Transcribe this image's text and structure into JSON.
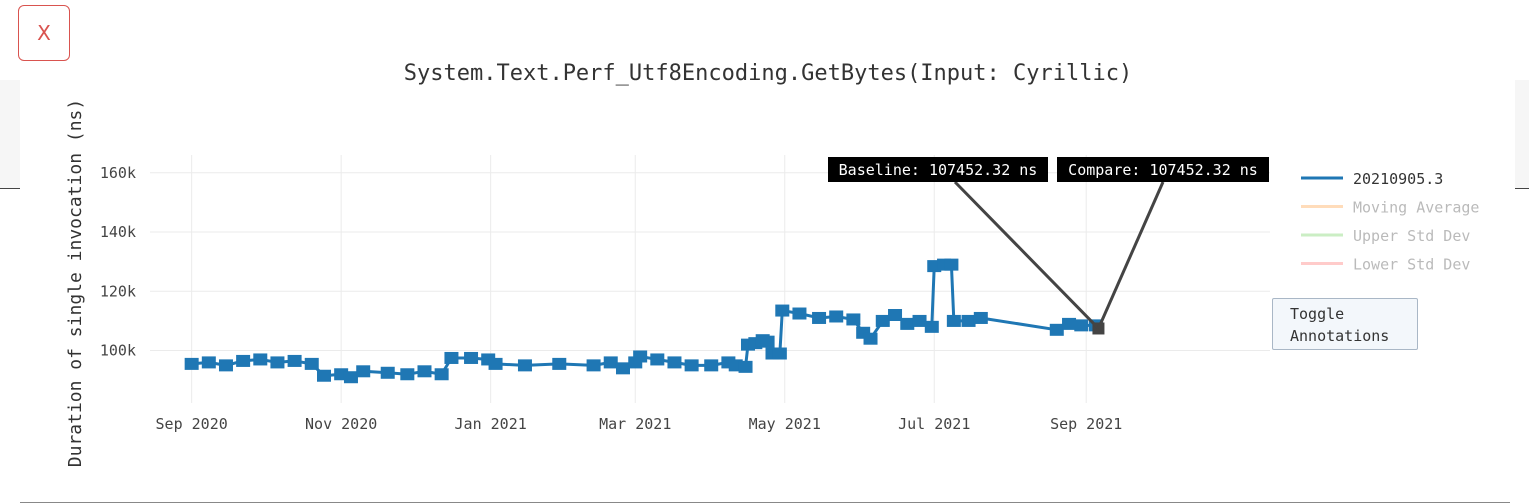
{
  "close_button": {
    "label": "X"
  },
  "toggle_button": {
    "label": "Toggle\nAnnotations"
  },
  "chart_data": {
    "type": "line",
    "title": "System.Text.Perf_Utf8Encoding.GetBytes(Input: Cyrillic)",
    "xlabel": "",
    "ylabel": "Duration of single invocation (ns)",
    "x_range": [
      "2020-08-15",
      "2021-11-15"
    ],
    "ylim": [
      85000,
      166000
    ],
    "x_ticks": [
      {
        "date": "2020-09-01",
        "label": "Sep 2020"
      },
      {
        "date": "2020-11-01",
        "label": "Nov 2020"
      },
      {
        "date": "2021-01-01",
        "label": "Jan 2021"
      },
      {
        "date": "2021-03-01",
        "label": "Mar 2021"
      },
      {
        "date": "2021-05-01",
        "label": "May 2021"
      },
      {
        "date": "2021-07-01",
        "label": "Jul 2021"
      },
      {
        "date": "2021-09-01",
        "label": "Sep 2021"
      }
    ],
    "y_ticks": [
      {
        "value": 100000,
        "label": "100k"
      },
      {
        "value": 120000,
        "label": "120k"
      },
      {
        "value": 140000,
        "label": "140k"
      },
      {
        "value": 160000,
        "label": "160k"
      }
    ],
    "grid": true,
    "legend_position": "right",
    "series": [
      {
        "name": "20210905.3",
        "color": "#1f77b4",
        "active": true,
        "points": [
          [
            "2020-09-01",
            95500
          ],
          [
            "2020-09-08",
            96000
          ],
          [
            "2020-09-15",
            95000
          ],
          [
            "2020-09-22",
            96500
          ],
          [
            "2020-09-29",
            97000
          ],
          [
            "2020-10-06",
            96000
          ],
          [
            "2020-10-13",
            96500
          ],
          [
            "2020-10-20",
            95500
          ],
          [
            "2020-10-25",
            91500
          ],
          [
            "2020-11-01",
            92000
          ],
          [
            "2020-11-05",
            91000
          ],
          [
            "2020-11-10",
            93000
          ],
          [
            "2020-11-20",
            92500
          ],
          [
            "2020-11-28",
            92000
          ],
          [
            "2020-12-05",
            93000
          ],
          [
            "2020-12-12",
            92000
          ],
          [
            "2020-12-16",
            97500
          ],
          [
            "2020-12-24",
            97500
          ],
          [
            "2020-12-31",
            97000
          ],
          [
            "2021-01-03",
            95500
          ],
          [
            "2021-01-15",
            95000
          ],
          [
            "2021-01-29",
            95500
          ],
          [
            "2021-02-12",
            95000
          ],
          [
            "2021-02-19",
            96000
          ],
          [
            "2021-02-24",
            94000
          ],
          [
            "2021-03-01",
            96000
          ],
          [
            "2021-03-03",
            98000
          ],
          [
            "2021-03-10",
            97000
          ],
          [
            "2021-03-17",
            96000
          ],
          [
            "2021-03-24",
            95000
          ],
          [
            "2021-04-01",
            95000
          ],
          [
            "2021-04-08",
            96000
          ],
          [
            "2021-04-11",
            95000
          ],
          [
            "2021-04-15",
            94500
          ],
          [
            "2021-04-16",
            102000
          ],
          [
            "2021-04-19",
            102500
          ],
          [
            "2021-04-22",
            103500
          ],
          [
            "2021-04-24",
            103000
          ],
          [
            "2021-04-26",
            99000
          ],
          [
            "2021-04-29",
            99000
          ],
          [
            "2021-04-30",
            113500
          ],
          [
            "2021-05-07",
            112500
          ],
          [
            "2021-05-15",
            111000
          ],
          [
            "2021-05-22",
            111500
          ],
          [
            "2021-05-29",
            110500
          ],
          [
            "2021-06-02",
            106000
          ],
          [
            "2021-06-05",
            104000
          ],
          [
            "2021-06-10",
            110000
          ],
          [
            "2021-06-15",
            112000
          ],
          [
            "2021-06-20",
            109000
          ],
          [
            "2021-06-25",
            110000
          ],
          [
            "2021-06-30",
            108000
          ],
          [
            "2021-07-01",
            128500
          ],
          [
            "2021-07-05",
            129000
          ],
          [
            "2021-07-08",
            129000
          ],
          [
            "2021-07-09",
            110000
          ],
          [
            "2021-07-15",
            110000
          ],
          [
            "2021-07-20",
            111000
          ],
          [
            "2021-08-20",
            107000
          ],
          [
            "2021-08-25",
            109000
          ],
          [
            "2021-08-30",
            108500
          ],
          [
            "2021-09-05",
            108500
          ],
          [
            "2021-09-06",
            107452.32
          ]
        ]
      },
      {
        "name": "Moving Average",
        "color": "#ffbb78",
        "active": false,
        "points": []
      },
      {
        "name": "Upper Std Dev",
        "color": "#98df8a",
        "active": false,
        "points": []
      },
      {
        "name": "Lower Std Dev",
        "color": "#ff9896",
        "active": false,
        "points": []
      }
    ],
    "annotations": [
      {
        "text": "Baseline: 107452.32 ns",
        "date": "2021-09-06",
        "value": 107452.32
      },
      {
        "text": "Compare: 107452.32 ns",
        "date": "2021-09-06",
        "value": 107452.32
      }
    ]
  }
}
